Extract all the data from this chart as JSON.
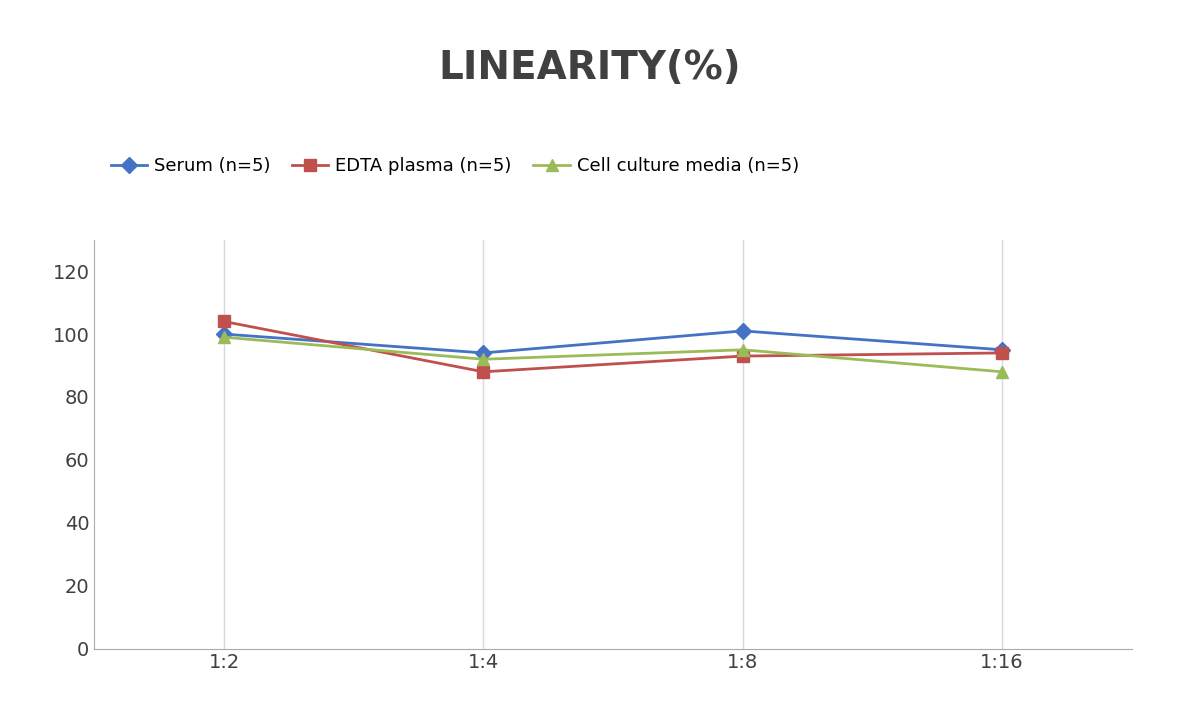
{
  "title": "LINEARITY(%)",
  "title_fontsize": 28,
  "title_fontweight": "bold",
  "title_color": "#404040",
  "x_labels": [
    "1:2",
    "1:4",
    "1:8",
    "1:16"
  ],
  "series": [
    {
      "label": "Serum (n=5)",
      "values": [
        100,
        94,
        101,
        95
      ],
      "color": "#4472C4",
      "marker": "D",
      "marker_size": 8,
      "linewidth": 2
    },
    {
      "label": "EDTA plasma (n=5)",
      "values": [
        104,
        88,
        93,
        94
      ],
      "color": "#C0504D",
      "marker": "s",
      "marker_size": 8,
      "linewidth": 2
    },
    {
      "label": "Cell culture media (n=5)",
      "values": [
        99,
        92,
        95,
        88
      ],
      "color": "#9BBB59",
      "marker": "^",
      "marker_size": 9,
      "linewidth": 2
    }
  ],
  "ylim": [
    0,
    130
  ],
  "yticks": [
    0,
    20,
    40,
    60,
    80,
    100,
    120
  ],
  "background_color": "#ffffff",
  "grid_color": "#d9d9d9",
  "legend_fontsize": 13,
  "tick_fontsize": 14
}
